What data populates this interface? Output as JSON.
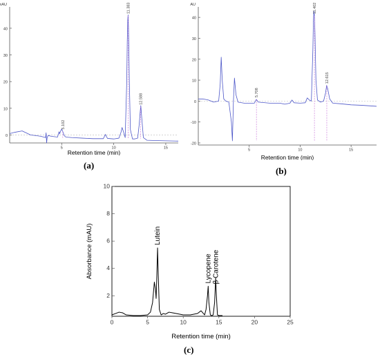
{
  "chart_data": [
    {
      "type": "line",
      "panel_label": "(a)",
      "ylabel_unit": "mAU",
      "xlabel": "Retention time (min)",
      "xlim": [
        0,
        16.2
      ],
      "ylim": [
        -3,
        48
      ],
      "xticks": [
        5,
        10,
        15
      ],
      "yticks": [
        0,
        10,
        20,
        30,
        40
      ],
      "line_color": "#4b55c8",
      "peak_labels": [
        {
          "x": 5.102,
          "text": "5.102"
        },
        {
          "x": 11.383,
          "text": "11.383"
        },
        {
          "x": 12.588,
          "text": "12.588"
        }
      ],
      "series": [
        {
          "x": [
            0,
            0.5,
            1.2,
            2.0,
            3.0,
            3.45,
            3.5,
            3.55,
            3.6,
            3.7,
            4.0,
            4.6,
            4.75,
            4.8,
            4.9,
            5.0,
            5.1,
            5.25,
            5.4,
            6.0,
            7.0,
            8.0,
            9.0,
            9.2,
            9.3,
            9.4,
            10.0,
            10.5,
            10.7,
            10.8,
            10.95,
            11.1,
            11.25,
            11.3,
            11.35,
            11.38,
            11.42,
            11.5,
            11.6,
            11.8,
            12.0,
            12.3,
            12.45,
            12.55,
            12.6,
            12.7,
            12.85,
            13.2,
            14.0,
            15.0,
            16.2
          ],
          "y": [
            0.5,
            1.0,
            1.5,
            0.0,
            -0.5,
            -1.0,
            0.8,
            -3.0,
            -1.0,
            -0.2,
            -0.5,
            -0.8,
            1.2,
            0.4,
            1.5,
            2.2,
            1.3,
            -0.3,
            -0.8,
            -1.0,
            -1.2,
            -1.4,
            -1.4,
            0.2,
            -0.6,
            -1.3,
            -1.5,
            -1.2,
            1.0,
            2.8,
            1.0,
            -1.0,
            20.0,
            35.0,
            43.0,
            45.0,
            40.0,
            20.0,
            2.0,
            -1.5,
            -1.5,
            -1.2,
            4.0,
            9.0,
            11.0,
            6.0,
            -1.0,
            -2.0,
            -2.1,
            -2.2,
            -2.3
          ]
        }
      ]
    },
    {
      "type": "line",
      "panel_label": "(b)",
      "ylabel_unit": "mAU",
      "xlabel": "Retention time (min)",
      "xlim": [
        0,
        17.5
      ],
      "ylim": [
        -21,
        45
      ],
      "xticks": [
        5,
        10,
        15
      ],
      "yticks": [
        -20,
        -10,
        0,
        10,
        20,
        30,
        40
      ],
      "line_color": "#4b55c8",
      "peak_labels": [
        {
          "x": 5.708,
          "text": "5.708"
        },
        {
          "x": 11.402,
          "text": "11.402"
        },
        {
          "x": 12.615,
          "text": "12.615"
        }
      ],
      "series": [
        {
          "x": [
            0,
            0.5,
            1.0,
            1.5,
            2.0,
            2.15,
            2.25,
            2.35,
            2.5,
            2.7,
            3.0,
            3.25,
            3.35,
            3.45,
            3.55,
            3.7,
            3.9,
            4.5,
            5.5,
            5.7,
            5.9,
            7.0,
            8.0,
            8.5,
            9.0,
            9.2,
            9.4,
            10.0,
            10.5,
            10.7,
            10.9,
            11.1,
            11.25,
            11.3,
            11.35,
            11.4,
            11.45,
            11.55,
            11.7,
            12.0,
            12.3,
            12.5,
            12.6,
            12.7,
            12.9,
            13.2,
            14.0,
            15.0,
            16.0,
            17.5
          ],
          "y": [
            1.0,
            1.0,
            0.5,
            -0.5,
            0.0,
            8.0,
            21.0,
            10.0,
            1.0,
            0.0,
            -0.5,
            -10.0,
            -19.0,
            0.0,
            11.0,
            3.0,
            -0.5,
            -1.0,
            -1.0,
            0.8,
            -0.5,
            -1.0,
            -1.0,
            -1.5,
            -1.0,
            0.5,
            -0.8,
            -1.0,
            -0.8,
            1.5,
            0.5,
            0.0,
            25.0,
            38.0,
            43.0,
            41.0,
            33.0,
            10.0,
            0.5,
            -0.5,
            0.0,
            4.0,
            7.5,
            6.0,
            1.0,
            -1.0,
            -1.3,
            -1.8,
            -2.0,
            -2.5
          ]
        }
      ]
    },
    {
      "type": "line",
      "panel_label": "(c)",
      "xlabel": "Retention time (min)",
      "ylabel": "Absorbance (mAU)",
      "xlim": [
        0,
        25
      ],
      "ylim": [
        0.5,
        10
      ],
      "xticks": [
        0,
        5,
        10,
        15,
        20,
        25
      ],
      "yticks": [
        2,
        4,
        6,
        8,
        10
      ],
      "line_color": "#000000",
      "peak_labels": [
        {
          "x": 6.4,
          "text": "Lutein"
        },
        {
          "x": 13.5,
          "text": "Lycopene"
        },
        {
          "x": 14.6,
          "text": "β Carotene"
        }
      ],
      "series": [
        {
          "x": [
            0,
            0.5,
            1.0,
            1.5,
            2.0,
            3.0,
            4.0,
            5.0,
            5.4,
            5.7,
            5.95,
            6.1,
            6.2,
            6.3,
            6.4,
            6.5,
            6.65,
            6.9,
            7.2,
            7.5,
            8.0,
            8.5,
            9.0,
            10.0,
            11.0,
            12.0,
            12.5,
            13.0,
            13.2,
            13.4,
            13.5,
            13.6,
            13.8,
            14.0,
            14.2,
            14.4,
            14.55,
            14.65,
            14.8,
            15.0,
            15.5
          ],
          "y": [
            0.6,
            0.7,
            0.8,
            0.75,
            0.6,
            0.55,
            0.55,
            0.6,
            0.8,
            1.5,
            3.0,
            2.5,
            1.8,
            3.5,
            5.5,
            3.5,
            1.0,
            0.6,
            0.7,
            0.65,
            0.8,
            0.75,
            0.7,
            0.6,
            0.6,
            0.7,
            0.9,
            0.6,
            1.0,
            2.0,
            2.7,
            1.5,
            0.6,
            0.55,
            0.6,
            1.5,
            3.3,
            2.0,
            0.6,
            0.55,
            0.55
          ]
        }
      ]
    }
  ]
}
